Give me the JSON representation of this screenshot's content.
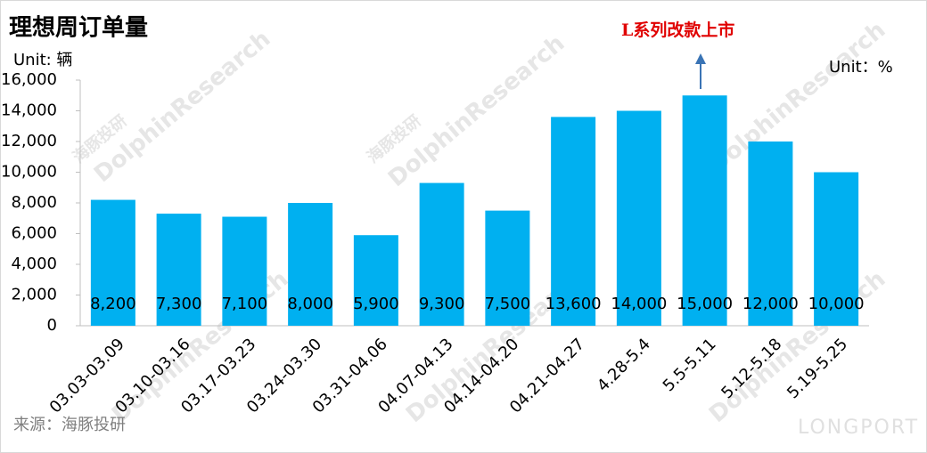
{
  "chart_data": {
    "type": "bar",
    "title": "理想周订单量",
    "y_unit": "Unit: 辆",
    "y2_unit": "Unit：%",
    "annotation": "L系列改款上市",
    "source": "来源：海豚投研",
    "watermark": "DolphinResearch",
    "watermark_cn": "海豚投研",
    "logo": "LONGPORT",
    "categories": [
      "03.03-03.09",
      "03.10-03.16",
      "03.17-03.23",
      "03.24-03.30",
      "03.31-04.06",
      "04.07-04.13",
      "04.14-04.20",
      "04.21-04.27",
      "4.28-5.4",
      "5.5-5.11",
      "5.12-5.18",
      "5.19-5.25"
    ],
    "values": [
      8200,
      7300,
      7100,
      8000,
      5900,
      9300,
      7500,
      13600,
      14000,
      15000,
      12000,
      10000
    ],
    "value_labels": [
      "8,200",
      "7,300",
      "7,100",
      "8,000",
      "5,900",
      "9,300",
      "7,500",
      "13,600",
      "14,000",
      "15,000",
      "12,000",
      "10,000"
    ],
    "color": "#00b0f0",
    "ylim": [
      0,
      16000
    ],
    "yticks": [
      0,
      {
        "value": 2000,
        "label": "2,000"
      },
      {
        "value": 4000,
        "label": "4,000"
      },
      {
        "value": 6000,
        "label": "6,000"
      },
      {
        "value": 8000,
        "label": "8,000"
      },
      {
        "value": 10000,
        "label": "10,000"
      },
      {
        "value": 12000,
        "label": "12,000"
      },
      {
        "value": 14000,
        "label": "14,000"
      },
      {
        "value": 16000,
        "label": "16,000"
      }
    ],
    "grid": false
  }
}
